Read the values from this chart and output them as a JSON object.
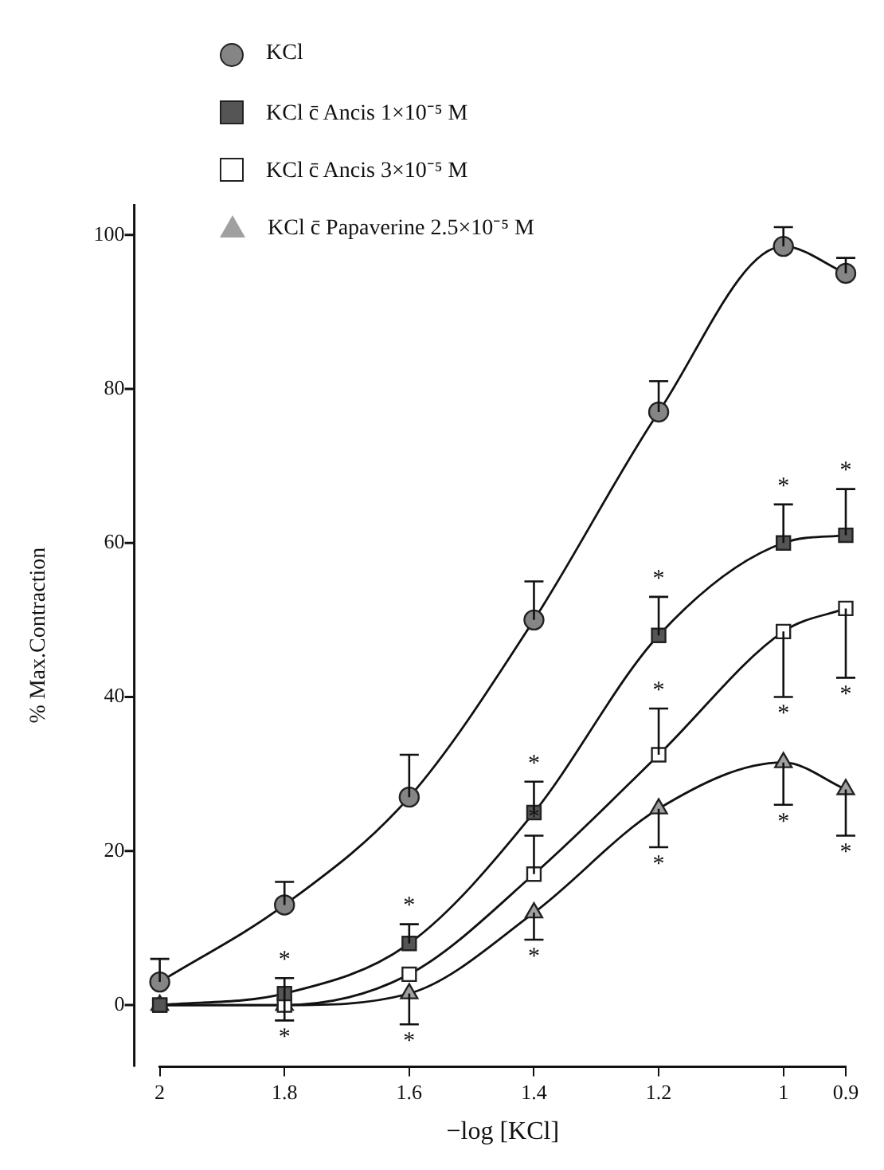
{
  "chart_data": {
    "type": "line",
    "xlabel": "−log [KCl]",
    "ylabel": "% Max.Contraction",
    "x": [
      2,
      1.8,
      1.6,
      1.4,
      1.2,
      1,
      0.9
    ],
    "xlim": [
      2,
      0.9
    ],
    "xticks": [
      2,
      1.8,
      1.6,
      1.4,
      1.2,
      1,
      0.9
    ],
    "ylim": [
      -8,
      104
    ],
    "yticks": [
      0,
      20,
      40,
      60,
      80,
      100
    ],
    "grid": false,
    "legend": "top left",
    "series": [
      {
        "name": "KCl",
        "color": "#858585",
        "marker": "circle",
        "values": [
          3,
          13,
          27,
          50,
          77,
          98.5,
          95
        ],
        "errors": [
          [
            3,
            6
          ],
          [
            13,
            16
          ],
          [
            27,
            32.5
          ],
          [
            50,
            55
          ],
          [
            77,
            81
          ],
          [
            98.5,
            101
          ],
          [
            95,
            97
          ]
        ]
      },
      {
        "name": "KCl c̄ Ancis 1×10⁻⁵ M",
        "color": "#555555",
        "marker": "square",
        "values": [
          0,
          1.5,
          8,
          25,
          48,
          60,
          61
        ],
        "errors": [
          null,
          [
            -2,
            3.5
          ],
          [
            8,
            10.5
          ],
          [
            25,
            29
          ],
          [
            48,
            53
          ],
          [
            60,
            65
          ],
          [
            61,
            67
          ]
        ]
      },
      {
        "name": "KCl c̄ Ancis 3×10⁻⁵ M",
        "color": "#ffffff",
        "marker": "square",
        "values": [
          0,
          0,
          4,
          17,
          32.5,
          48.5,
          51.5
        ],
        "errors": [
          null,
          null,
          null,
          [
            17,
            22
          ],
          [
            32.5,
            38.5
          ],
          [
            40,
            48.5
          ],
          [
            42.5,
            51.5
          ]
        ]
      },
      {
        "name": "KCl c̄ Papaverine 2.5×10⁻⁵ M",
        "color": "#a0a0a0",
        "marker": "triangle",
        "values": [
          0,
          0,
          1.5,
          12,
          25.5,
          31.5,
          28
        ],
        "errors": [
          null,
          null,
          [
            -2.5,
            1.5
          ],
          [
            8.5,
            12
          ],
          [
            20.5,
            25.5
          ],
          [
            26,
            31.5
          ],
          [
            22,
            28
          ]
        ]
      }
    ],
    "annotations": [
      {
        "text": "*",
        "x": 1.8,
        "y": 3.5
      },
      {
        "text": "*",
        "x": 1.8,
        "y": -2
      },
      {
        "text": "*",
        "x": 1.6,
        "y": 10.5
      },
      {
        "text": "*",
        "x": 1.6,
        "y": -2.5
      },
      {
        "text": "*",
        "x": 1.4,
        "y": 29
      },
      {
        "text": "*",
        "x": 1.4,
        "y": 22
      },
      {
        "text": "*",
        "x": 1.4,
        "y": 8.5
      },
      {
        "text": "*",
        "x": 1.2,
        "y": 53
      },
      {
        "text": "*",
        "x": 1.2,
        "y": 38.5
      },
      {
        "text": "*",
        "x": 1.2,
        "y": 20.5
      },
      {
        "text": "*",
        "x": 1,
        "y": 65
      },
      {
        "text": "*",
        "x": 1,
        "y": 40
      },
      {
        "text": "*",
        "x": 1,
        "y": 26
      },
      {
        "text": "*",
        "x": 0.9,
        "y": 67
      },
      {
        "text": "*",
        "x": 0.9,
        "y": 42.5
      },
      {
        "text": "*",
        "x": 0.9,
        "y": 22
      }
    ]
  }
}
